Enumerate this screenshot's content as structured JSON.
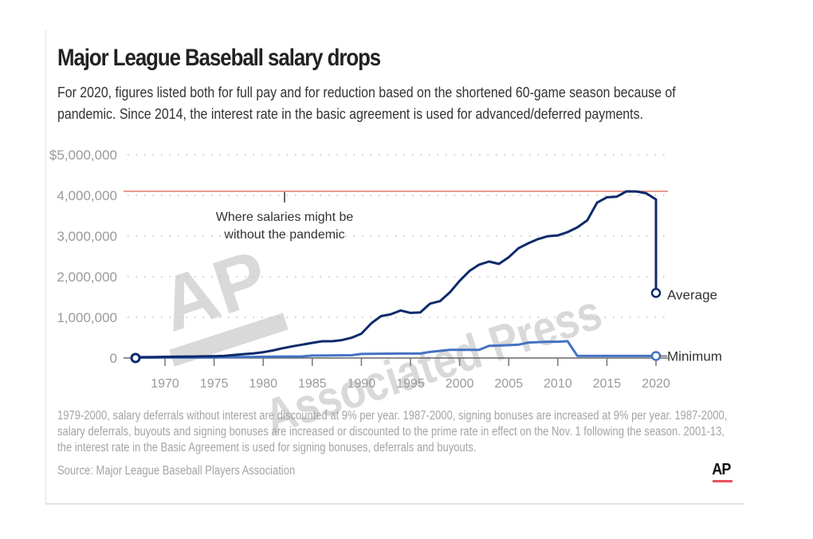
{
  "header": {
    "title": "Major League Baseball salary drops",
    "subtitle": "For 2020, figures listed both for full pay and for reduction based on the shortened 60-game season because of pandemic. Since 2014, the interest rate in the basic agreement is used for advanced/deferred payments."
  },
  "footer": {
    "notes": "1979-2000, salary deferrals without interest are discounted at 9% per year. 1987-2000, signing bonuses are increased at 9% per year. 1987-2000, salary deferrals, buyouts and signing bonuses are increased or discounted to the prime rate in effect on the Nov. 1 following the season. 2001-13, the interest rate in the Basic Agreement is used for signing bonuses, deferrals and buyouts.",
    "source": "Source: Major League Baseball Players Association",
    "logo_text": "AP",
    "logo_accent": "#e8515f"
  },
  "watermark": {
    "logo": "AP",
    "text": "Associated Press"
  },
  "chart_data": {
    "type": "line",
    "title": "Major League Baseball salary drops",
    "xlabel": "",
    "ylabel": "",
    "xlim": [
      1967,
      2020
    ],
    "ylim": [
      0,
      5000000
    ],
    "grid": true,
    "y_ticks": [
      0,
      1000000,
      2000000,
      3000000,
      4000000,
      5000000
    ],
    "y_tick_labels": [
      "0",
      "1,000,000",
      "2,000,000",
      "3,000,000",
      "4,000,000",
      "$5,000,000"
    ],
    "x_ticks": [
      1970,
      1975,
      1980,
      1985,
      1990,
      1995,
      2000,
      2005,
      2010,
      2015,
      2020
    ],
    "x_tick_labels": [
      "1970",
      "1975",
      "1980",
      "1985",
      "1990",
      "1995",
      "2000",
      "2005",
      "2010",
      "2015",
      "2020"
    ],
    "reference_line": {
      "value": 4100000,
      "label": "Where salaries might be without the pandemic",
      "label_lines": [
        "Where salaries might be",
        "without the pandemic"
      ],
      "color": "#e07a6c"
    },
    "series": [
      {
        "name": "Average",
        "color": "#0d2a6b",
        "x": [
          1967,
          1968,
          1969,
          1970,
          1971,
          1972,
          1973,
          1974,
          1975,
          1976,
          1977,
          1978,
          1979,
          1980,
          1981,
          1982,
          1983,
          1984,
          1985,
          1986,
          1987,
          1988,
          1989,
          1990,
          1991,
          1992,
          1993,
          1994,
          1995,
          1996,
          1997,
          1998,
          1999,
          2000,
          2001,
          2002,
          2003,
          2004,
          2005,
          2006,
          2007,
          2008,
          2009,
          2010,
          2011,
          2012,
          2013,
          2014,
          2015,
          2016,
          2017,
          2018,
          2019,
          2020
        ],
        "values": [
          19000,
          20632,
          24909,
          29303,
          31543,
          34092,
          36566,
          40839,
          44676,
          51501,
          74000,
          97000,
          113558,
          143756,
          185651,
          241497,
          289194,
          329408,
          371571,
          412520,
          412454,
          438729,
          497254,
          597537,
          851492,
          1028667,
          1076089,
          1168263,
          1110766,
          1119981,
          1336609,
          1398831,
          1611166,
          1895630,
          2138896,
          2295649,
          2372189,
          2313535,
          2476589,
          2699292,
          2820980,
          2925679,
          2996106,
          3014572,
          3095183,
          3213479,
          3386212,
          3818923,
          3952252,
          3966020,
          4097122,
          4095686,
          4051490,
          3900000
        ],
        "endpoint": {
          "year": 2020,
          "value": 1600000,
          "note": "2020 reduced for 60-game season"
        }
      },
      {
        "name": "Minimum",
        "color": "#4472c4",
        "x": [
          1967,
          1970,
          1975,
          1976,
          1980,
          1981,
          1984,
          1985,
          1986,
          1989,
          1990,
          1994,
          1995,
          1996,
          1997,
          1999,
          2000,
          2002,
          2003,
          2005,
          2006,
          2007,
          2009,
          2010,
          2011,
          2012,
          2013,
          2014,
          2015,
          2016,
          2017,
          2018,
          2019,
          2020
        ],
        "values": [
          6000,
          12000,
          16000,
          19000,
          30000,
          32500,
          40000,
          60000,
          60000,
          68000,
          100000,
          109000,
          109000,
          109000,
          150000,
          200000,
          200000,
          200000,
          300000,
          316000,
          327000,
          380000,
          400000,
          400000,
          414000,
          50000,
          50000,
          50000,
          50000,
          50000,
          50000,
          50000,
          50000,
          50000
        ],
        "endpoint": {
          "year": 2020,
          "value": 50000
        }
      }
    ],
    "legend": "inline-right"
  }
}
